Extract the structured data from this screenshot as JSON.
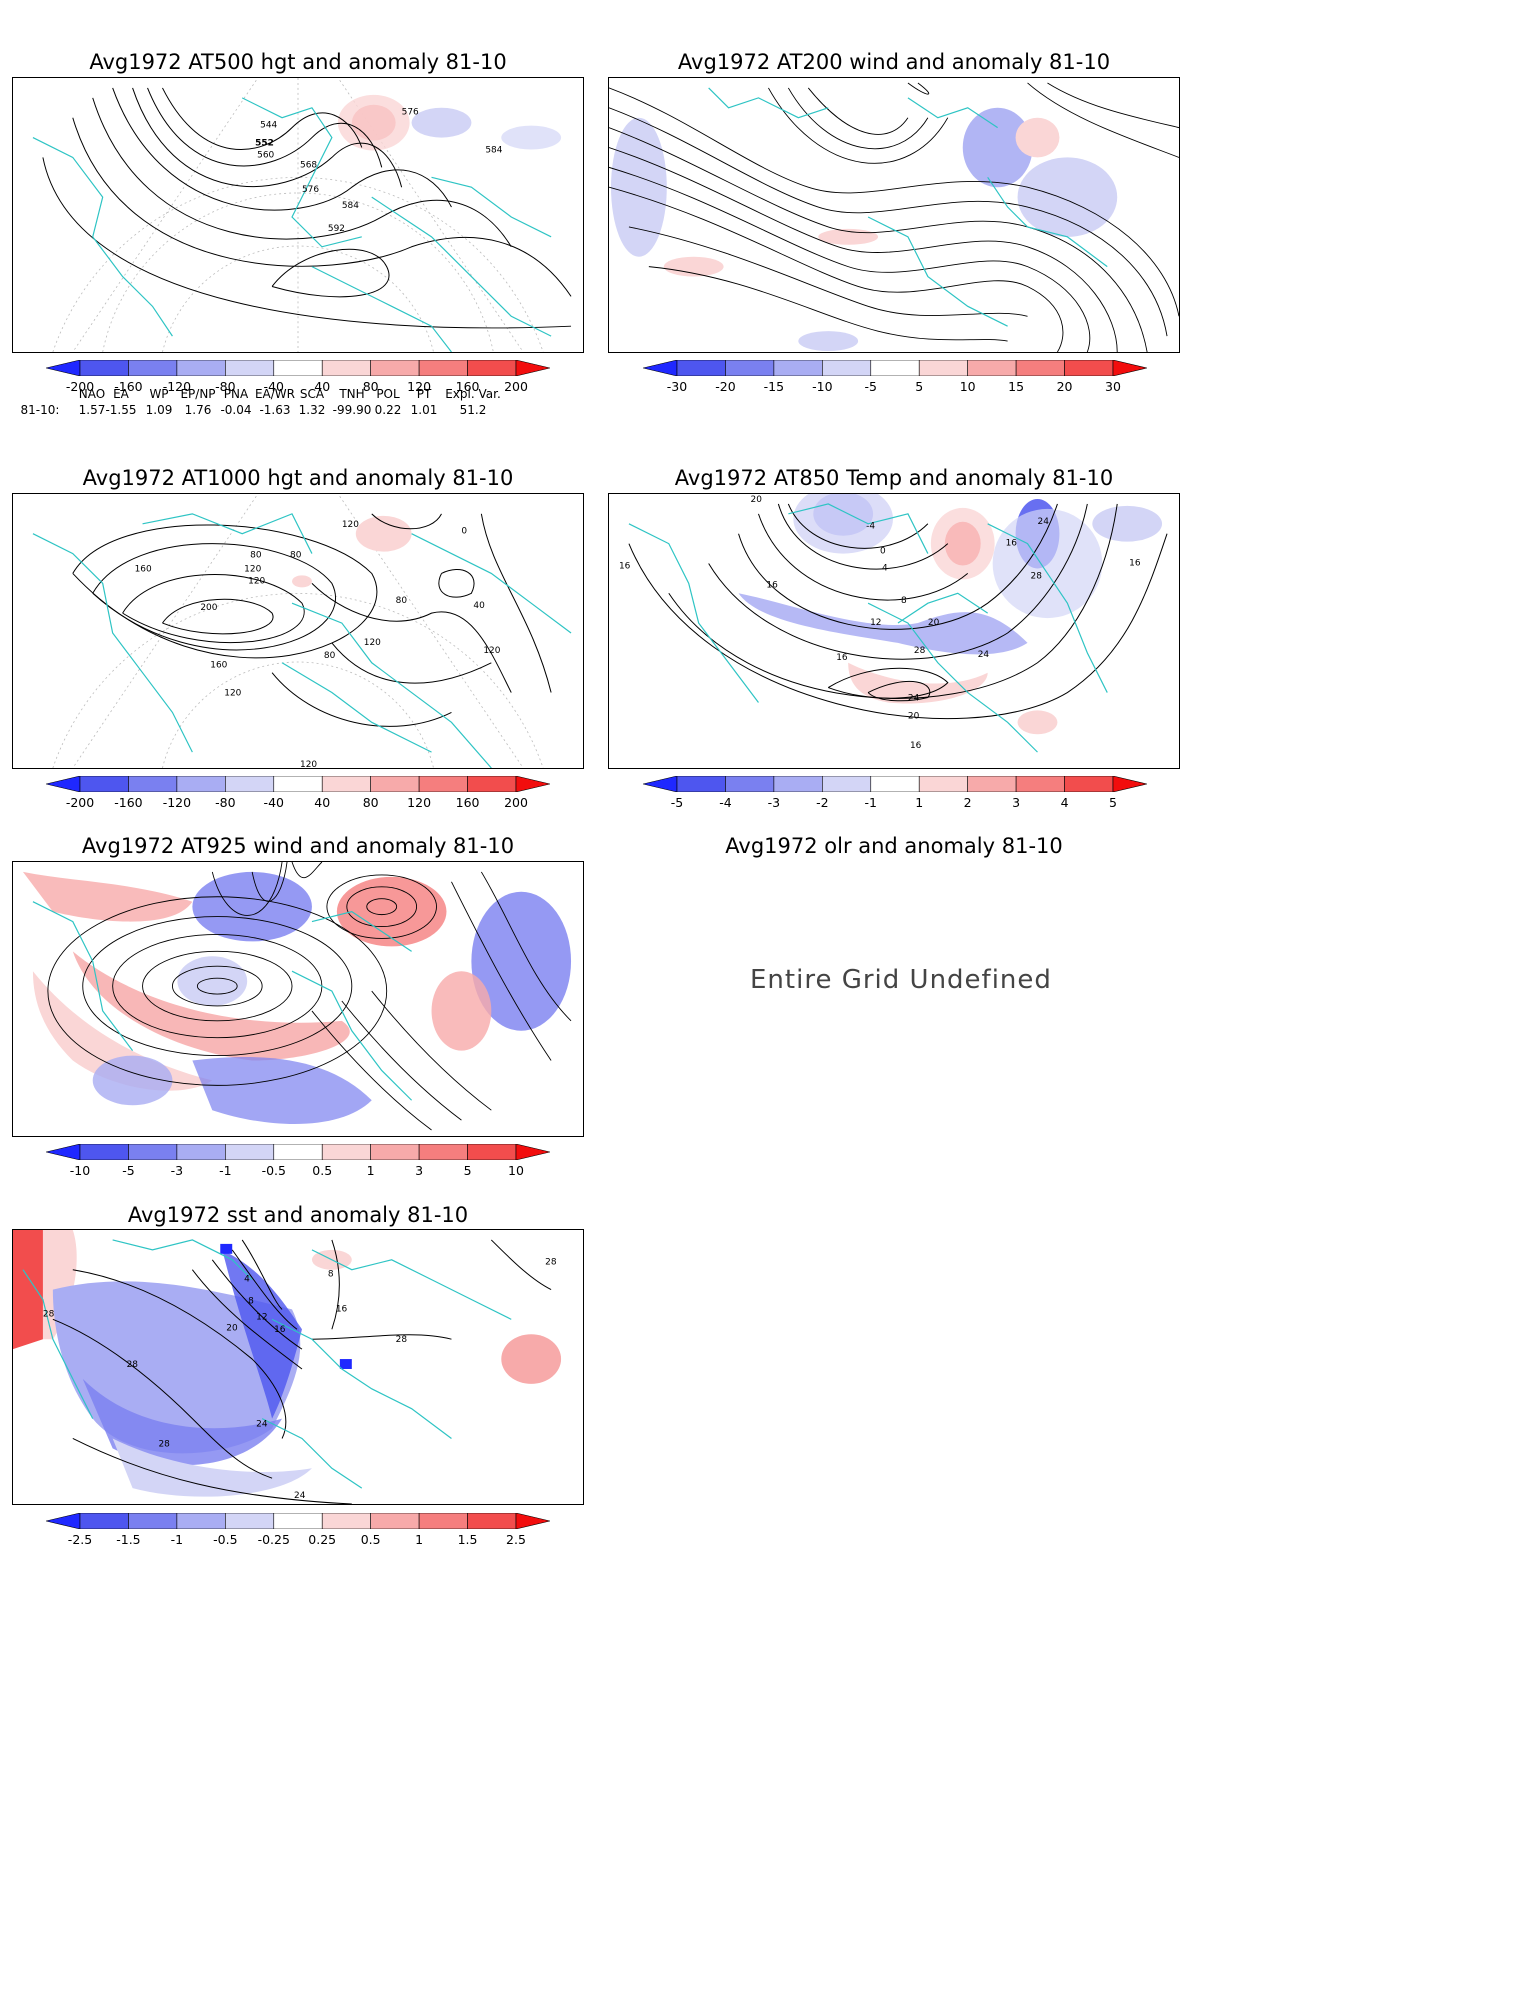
{
  "panels": [
    {
      "id": "p500",
      "title": "Avg1972 AT500 hgt and anomaly 81-10",
      "colorbar": [
        "-200",
        "-160",
        "-120",
        "-80",
        "-40",
        "40",
        "80",
        "120",
        "160",
        "200"
      ]
    },
    {
      "id": "p200",
      "title": "Avg1972 AT200 wind and anomaly 81-10",
      "colorbar": [
        "-30",
        "-20",
        "-15",
        "-10",
        "-5",
        "5",
        "10",
        "15",
        "20",
        "30"
      ]
    },
    {
      "id": "p1000",
      "title": "Avg1972 AT1000 hgt and anomaly 81-10",
      "colorbar": [
        "-200",
        "-160",
        "-120",
        "-80",
        "-40",
        "40",
        "80",
        "120",
        "160",
        "200"
      ]
    },
    {
      "id": "p850",
      "title": "Avg1972 AT850 Temp and anomaly 81-10",
      "colorbar": [
        "-5",
        "-4",
        "-3",
        "-2",
        "-1",
        "1",
        "2",
        "3",
        "4",
        "5"
      ]
    },
    {
      "id": "p925",
      "title": "Avg1972 AT925 wind and anomaly 81-10",
      "colorbar": [
        "-10",
        "-5",
        "-3",
        "-1",
        "-0.5",
        "0.5",
        "1",
        "3",
        "5",
        "10"
      ]
    },
    {
      "id": "polr",
      "title": "Avg1972 olr and anomaly 81-10",
      "message": "Entire Grid Undefined"
    },
    {
      "id": "psst",
      "title": "Avg1972 sst and anomaly 81-10",
      "colorbar": [
        "-2.5",
        "-1.5",
        "-1",
        "-0.5",
        "-0.25",
        "0.25",
        "0.5",
        "1",
        "1.5",
        "2.5"
      ]
    }
  ],
  "indices": {
    "row_label": "81-10:",
    "names": [
      "NAO",
      "EA",
      "WP",
      "EP/NP",
      "PNA",
      "EA/WR",
      "SCA",
      "TNH",
      "POL",
      "PT",
      "Expl. Var."
    ],
    "values": [
      "1.57",
      "-1.55",
      "1.09",
      "1.76",
      "-0.04",
      "-1.63",
      "1.32",
      "-99.90",
      "0.22",
      "1.01",
      "51.2"
    ]
  },
  "contour_labels": {
    "p500": [
      "544",
      "552",
      "560",
      "568",
      "576",
      "576",
      "584",
      "584",
      "592"
    ],
    "p1000": [
      "80",
      "120",
      "160",
      "120",
      "200",
      "160",
      "120",
      "80",
      "120",
      "80",
      "40",
      "0",
      "120",
      "80",
      "120",
      "120"
    ],
    "p850": [
      "20",
      "-4",
      "0",
      "4",
      "16",
      "24",
      "16",
      "28",
      "8",
      "12",
      "20",
      "16",
      "28",
      "24",
      "24",
      "20",
      "16",
      "16",
      "16"
    ],
    "psst": [
      "4",
      "8",
      "12",
      "16",
      "20",
      "28",
      "28",
      "28",
      "24",
      "28",
      "24",
      "16",
      "8",
      "28"
    ]
  },
  "colors": {
    "scale": [
      "#1f28ff",
      "#4e56ef",
      "#7a80f0",
      "#a9adf3",
      "#d3d5f6",
      "#ffffff",
      "#fad6d6",
      "#f7aaaa",
      "#f57e7e",
      "#f24d4d",
      "#f20d0d"
    ],
    "coast": "#2ec4c4",
    "contour": "#000000"
  }
}
